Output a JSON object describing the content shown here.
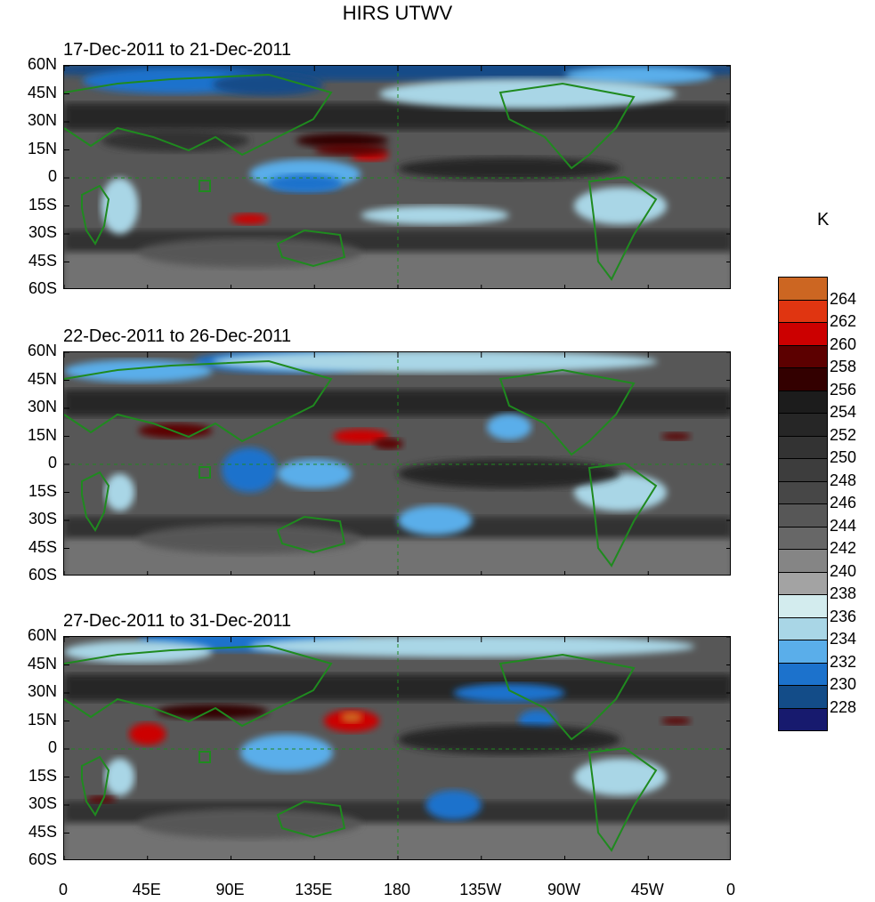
{
  "title": "HIRS UTWV",
  "panels": [
    {
      "subtitle": "17-Dec-2011 to 21-Dec-2011"
    },
    {
      "subtitle": "22-Dec-2011 to 26-Dec-2011"
    },
    {
      "subtitle": "27-Dec-2011 to 31-Dec-2011"
    }
  ],
  "lat_ticks": [
    "60N",
    "45N",
    "30N",
    "15N",
    "0",
    "15S",
    "30S",
    "45S",
    "60S"
  ],
  "lon_ticks": [
    "0",
    "45E",
    "90E",
    "135E",
    "180",
    "135W",
    "90W",
    "45W",
    "0"
  ],
  "colorbar": {
    "unit": "K",
    "labels": [
      "264",
      "262",
      "260",
      "258",
      "256",
      "254",
      "252",
      "250",
      "248",
      "246",
      "244",
      "242",
      "240",
      "238",
      "236",
      "234",
      "232",
      "230",
      "228"
    ],
    "colors": [
      "#cc6622",
      "#e03511",
      "#cc0000",
      "#5c0000",
      "#330000",
      "#1c1c1c",
      "#262626",
      "#333333",
      "#3d3d3d",
      "#474747",
      "#575757",
      "#676767",
      "#858585",
      "#a3a3a3",
      "#d3ecee",
      "#a9d6e6",
      "#5aaeea",
      "#1c72cc",
      "#134c88",
      "#171a6e"
    ]
  },
  "coastline_color": "#1f8a1f"
}
